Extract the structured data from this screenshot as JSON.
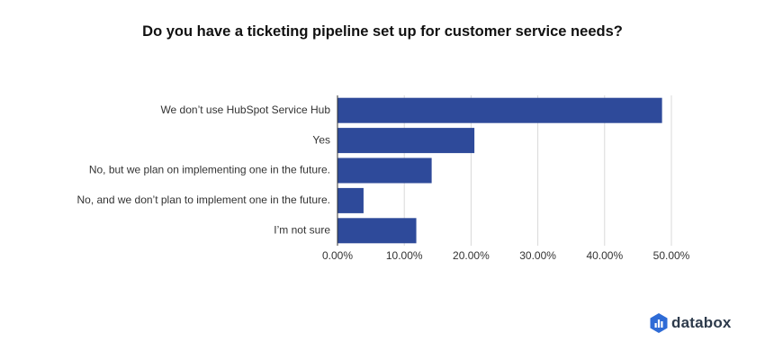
{
  "chart_data": {
    "type": "bar",
    "orientation": "horizontal",
    "title": "Do you have a ticketing pipeline set up for customer service needs?",
    "categories": [
      "We don’t use HubSpot Service Hub",
      "Yes",
      "No, but we plan on implementing one in the future.",
      "No, and we don’t plan to implement one in the future.",
      "I’m not sure"
    ],
    "series": [
      {
        "values": [
          48.6,
          20.5,
          14.1,
          3.9,
          11.8
        ]
      }
    ],
    "xlim": [
      0,
      50
    ],
    "x_ticks": [
      0,
      10,
      20,
      30,
      40,
      50
    ],
    "x_tick_labels": [
      "0.00%",
      "10.00%",
      "20.00%",
      "30.00%",
      "40.00%",
      "50.00%"
    ],
    "xlabel": "",
    "ylabel": "",
    "grid": true,
    "legend": "none",
    "bar_color": "#2e4a9a"
  },
  "brand": {
    "name": "databox",
    "color": "#2d3a4b",
    "icon": "databox-logo-icon"
  }
}
